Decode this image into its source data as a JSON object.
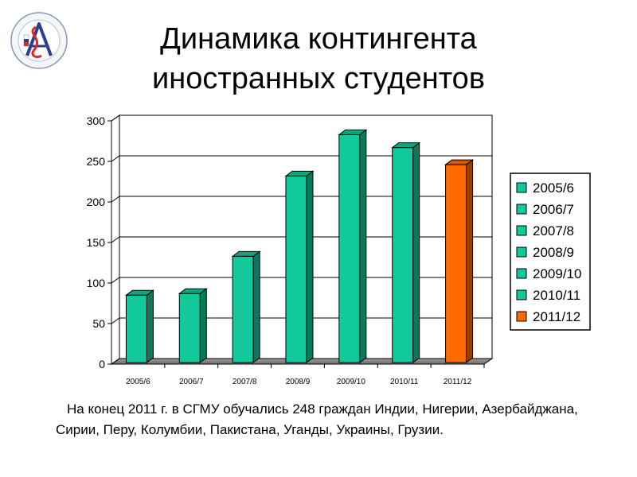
{
  "slide": {
    "title": "Динамика контингента\nиностранных студентов",
    "caption": "На конец 2011 г. в СГМУ обучались 248  граждан Индии, Нигерии, Азербайджана, Сирии, Перу, Колумбии, Пакистана, Уганды, Украины, Грузии."
  },
  "colors": {
    "bar": "#11c99a",
    "bar_highlight": "#ff6a00",
    "background": "#ffffff"
  },
  "chart_data": {
    "type": "bar",
    "categories": [
      "2005/6",
      "2006/7",
      "2007/8",
      "2008/9",
      "2009/10",
      "2010/11",
      "2011/12"
    ],
    "values": [
      85,
      87,
      133,
      232,
      283,
      267,
      246
    ],
    "highlight_index": 6,
    "ylim": [
      0,
      300
    ],
    "yticks": [
      0,
      50,
      100,
      150,
      200,
      250,
      300
    ],
    "grid": true,
    "legend": {
      "position": "right",
      "entries": [
        "2005/6",
        "2006/7",
        "2007/8",
        "2008/9",
        "2009/10",
        "2010/11",
        "2011/12"
      ]
    }
  }
}
